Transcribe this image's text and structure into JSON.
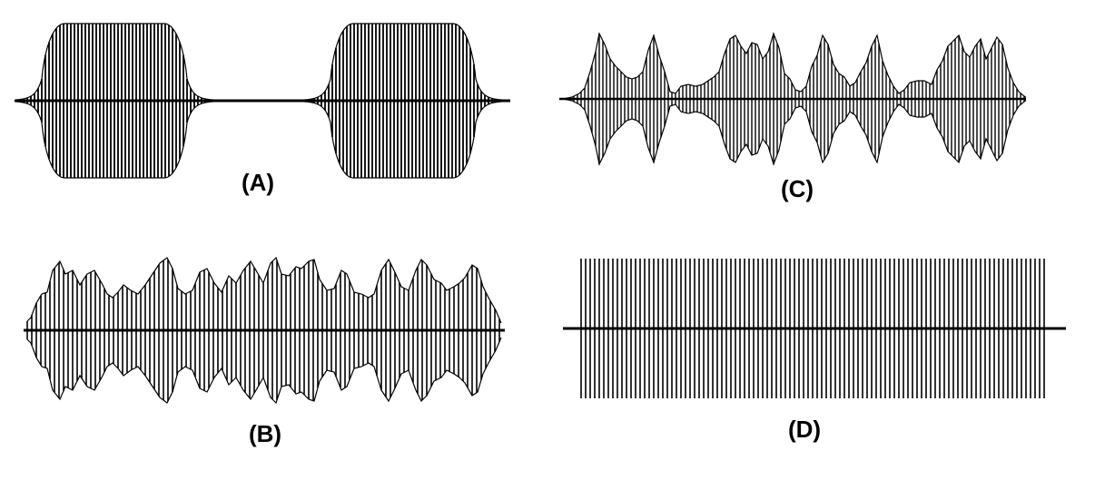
{
  "colors": {
    "ink": "#000000",
    "background": "#ffffff"
  },
  "panels": [
    {
      "id": "A",
      "label": "(A)",
      "envelope": "two-bursts-flat-top"
    },
    {
      "id": "B",
      "label": "(B)",
      "envelope": "continuous-modulated"
    },
    {
      "id": "C",
      "label": "(C)",
      "envelope": "bursts-with-gaps"
    },
    {
      "id": "D",
      "label": "(D)",
      "envelope": "constant-amplitude"
    }
  ]
}
